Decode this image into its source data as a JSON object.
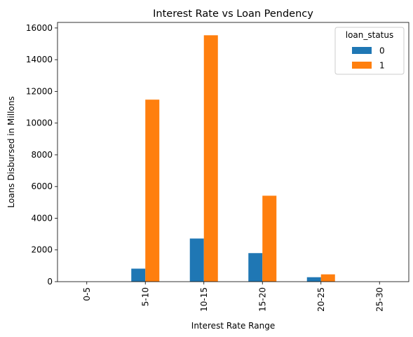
{
  "chart_data": {
    "type": "bar",
    "title": "Interest Rate vs Loan Pendency",
    "xlabel": "Interest Rate Range",
    "ylabel": "Loans Disbursed in Millons",
    "categories": [
      "0-5",
      "5-10",
      "10-15",
      "15-20",
      "20-25",
      "25-30"
    ],
    "series": [
      {
        "name": "0",
        "color": "#1f77b4",
        "values": [
          0,
          820,
          2720,
          1800,
          280,
          0
        ]
      },
      {
        "name": "1",
        "color": "#ff7f0e",
        "values": [
          0,
          11480,
          15540,
          5420,
          460,
          0
        ]
      }
    ],
    "ylim": [
      0,
      16350
    ],
    "yticks": [
      0,
      2000,
      4000,
      6000,
      8000,
      10000,
      12000,
      14000,
      16000
    ],
    "grid": false,
    "legend": {
      "title": "loan_status",
      "position": "top-right"
    }
  }
}
